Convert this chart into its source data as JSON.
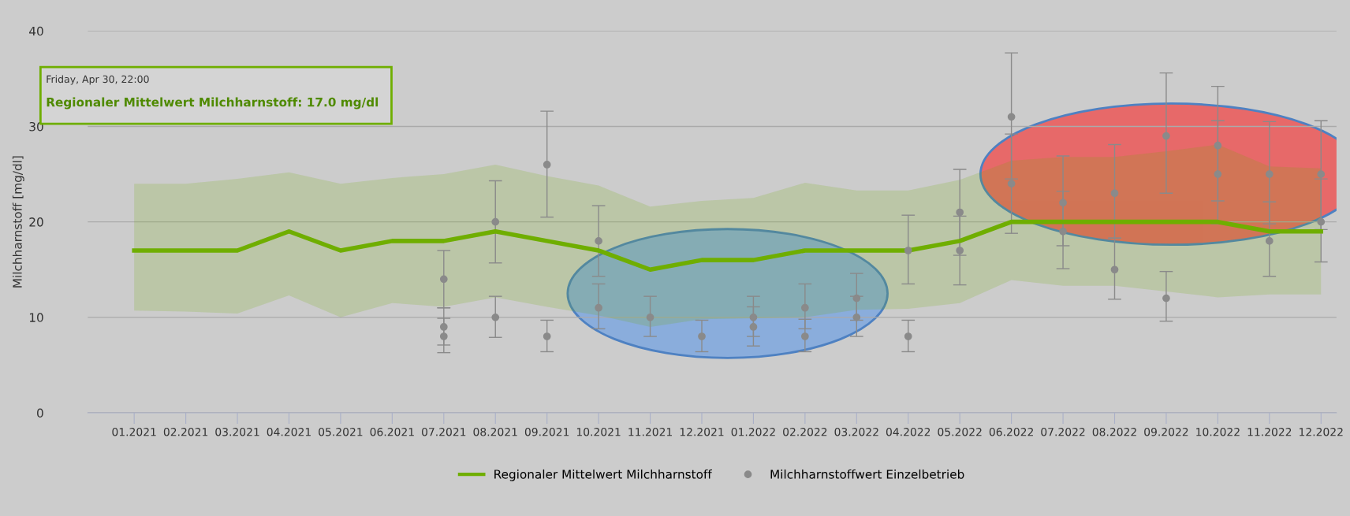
{
  "chart_data": {
    "type": "line",
    "ylabel": "Milchharnstoff [mg/dl]",
    "categories": [
      "01.2021",
      "02.2021",
      "03.2021",
      "04.2021",
      "05.2021",
      "06.2021",
      "07.2021",
      "08.2021",
      "09.2021",
      "10.2021",
      "11.2021",
      "12.2021",
      "01.2022",
      "02.2022",
      "03.2022",
      "04.2022",
      "05.2022",
      "06.2022",
      "07.2022",
      "08.2022",
      "09.2022",
      "10.2022",
      "11.2022",
      "12.2022"
    ],
    "ylim": [
      0,
      40
    ],
    "yticks": [
      0,
      10,
      20,
      30,
      40
    ],
    "grid": "y",
    "legend": "bottom",
    "series": [
      {
        "name": "Regionaler Mittelwert Milchharnstoff",
        "color": "#6fae00",
        "marker": "none",
        "line_style": "solid",
        "values": [
          17,
          17,
          17,
          19,
          17,
          18,
          18,
          19,
          18,
          17,
          15,
          16,
          16,
          17,
          17,
          17,
          18,
          20,
          20,
          20,
          20,
          20,
          19,
          19
        ],
        "lower": [
          10.7,
          10.6,
          10.4,
          12.3,
          10,
          11.5,
          11.1,
          12.1,
          11.1,
          10.2,
          9.0,
          9.8,
          9.9,
          10,
          10.8,
          10.9,
          11.5,
          13.9,
          13.3,
          13.3,
          12.7,
          12.1,
          12.4,
          12.4
        ],
        "upper": [
          24,
          24,
          24.5,
          25.2,
          24,
          24.6,
          25,
          26,
          24.8,
          23.8,
          21.6,
          22.2,
          22.5,
          24.1,
          23.3,
          23.3,
          24.4,
          26.4,
          26.8,
          26.8,
          27.4,
          28.1,
          25.8,
          25.6
        ]
      },
      {
        "name": "Milchharnstoffwert Einzelbetrieb",
        "type": "scatter",
        "color": "#8a8a8a",
        "marker": "circle",
        "x": [
          "07.2021",
          "07.2021",
          "07.2021",
          "08.2021",
          "08.2021",
          "09.2021",
          "09.2021",
          "10.2021",
          "10.2021",
          "11.2021",
          "12.2021",
          "01.2022",
          "01.2022",
          "02.2022",
          "02.2022",
          "03.2022",
          "03.2022",
          "04.2022",
          "04.2022",
          "05.2022",
          "05.2022",
          "06.2022",
          "06.2022",
          "07.2022",
          "07.2022",
          "08.2022",
          "08.2022",
          "09.2022",
          "09.2022",
          "10.2022",
          "10.2022",
          "11.2022",
          "11.2022",
          "12.2022",
          "12.2022"
        ],
        "values": [
          14,
          9,
          8,
          20,
          10,
          26,
          8,
          18,
          11,
          10,
          8,
          10,
          9,
          11,
          8,
          12,
          10,
          17,
          8,
          21,
          17,
          31,
          24,
          22,
          19,
          23,
          15,
          29,
          12,
          28,
          25,
          25,
          18,
          25,
          20
        ],
        "errors": [
          [
            11,
            17
          ],
          [
            7.1,
            11
          ],
          [
            6.3,
            9.9
          ],
          [
            15.7,
            24.3
          ],
          [
            7.9,
            12.2
          ],
          [
            20.5,
            31.6
          ],
          [
            6.4,
            9.7
          ],
          [
            14.3,
            21.7
          ],
          [
            8.8,
            13.5
          ],
          [
            8,
            12.2
          ],
          [
            6.4,
            9.7
          ],
          [
            8,
            12.2
          ],
          [
            7,
            11.1
          ],
          [
            8.8,
            13.5
          ],
          [
            6.4,
            9.8
          ],
          [
            9.7,
            14.6
          ],
          [
            8,
            12.2
          ],
          [
            13.5,
            20.7
          ],
          [
            6.4,
            9.7
          ],
          [
            16.5,
            25.5
          ],
          [
            13.4,
            20.6
          ],
          [
            24.5,
            37.7
          ],
          [
            18.8,
            29.2
          ],
          [
            17.5,
            26.9
          ],
          [
            15.1,
            23.2
          ],
          [
            18.3,
            28.1
          ],
          [
            11.9,
            18.3
          ],
          [
            23,
            35.6
          ],
          [
            9.6,
            14.8
          ],
          [
            22.2,
            34.2
          ],
          [
            19.8,
            30.6
          ],
          [
            19.8,
            30.5
          ],
          [
            14.3,
            22.1
          ],
          [
            19.2,
            30.6
          ],
          [
            15.8,
            24.5
          ]
        ]
      }
    ],
    "annotations": [
      "Friday, Apr 30, 22:00",
      "Regionaler Mittelwert Milchharnstoff: 17.0 mg/dl"
    ]
  }
}
